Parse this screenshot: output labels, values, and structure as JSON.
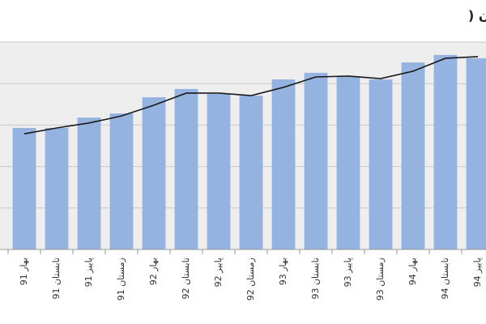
{
  "chart_data": {
    "type": "bar",
    "title": "متوسط اجاره بهای یک مترمربع آپارتمان در شهر تهران (",
    "categories": [
      "بهار 91",
      "تابستان 91",
      "پاییز 91",
      "زمستان 91",
      "بهار 92",
      "تابستان 92",
      "پاییز 92",
      "زمستان 92",
      "بهار 93",
      "تابستان 93",
      "پاییز 93",
      "زمستان 93",
      "بهار 94",
      "تابستان 94",
      "پاییز 94"
    ],
    "series": [
      {
        "type": "bar",
        "color": "#95b3e0",
        "values": [
          2.93,
          2.93,
          3.18,
          3.28,
          3.67,
          3.87,
          3.75,
          3.71,
          4.1,
          4.26,
          4.16,
          4.1,
          4.51,
          4.69,
          4.61
        ]
      },
      {
        "type": "line",
        "color": "#1a1a1a",
        "values": [
          2.79,
          2.93,
          3.05,
          3.22,
          3.48,
          3.77,
          3.77,
          3.71,
          3.91,
          4.16,
          4.18,
          4.12,
          4.3,
          4.61,
          4.65
        ]
      }
    ],
    "ylim": [
      0,
      5
    ],
    "yticks": [
      0,
      1,
      2,
      3,
      4,
      5
    ],
    "grid": true
  }
}
